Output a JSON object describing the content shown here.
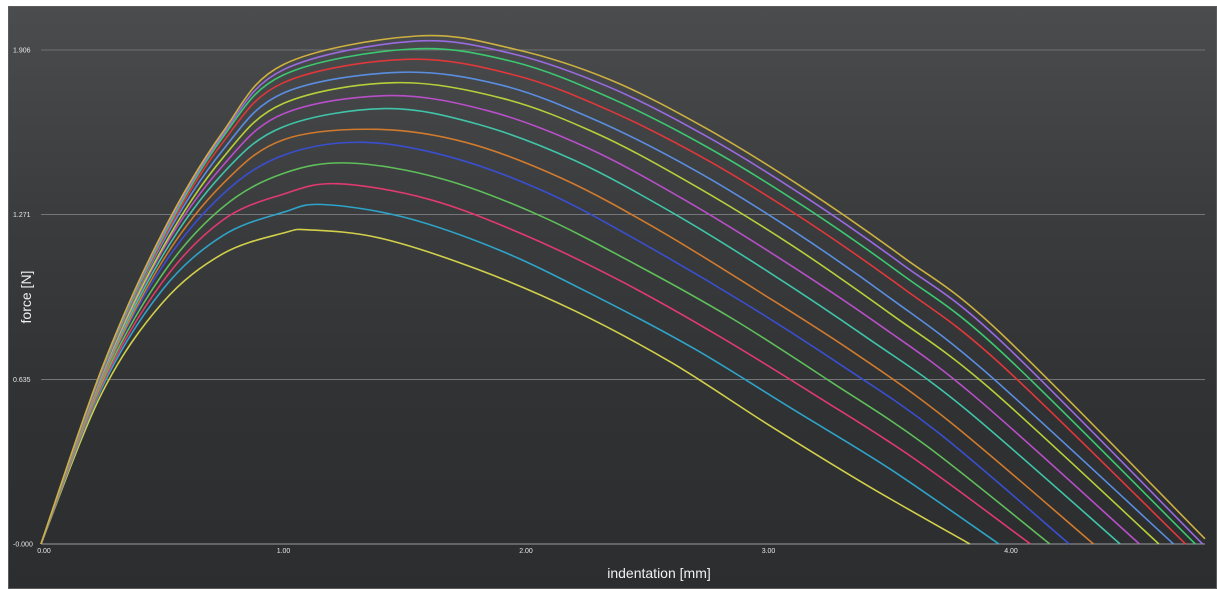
{
  "chart_data": {
    "type": "line",
    "title": "",
    "xlabel": "indentation [mm]",
    "ylabel": "force [N]",
    "xlim": [
      0.0,
      4.8
    ],
    "ylim": [
      0.0,
      1.906
    ],
    "xticks": [
      0.0,
      1.0,
      2.0,
      3.0,
      4.0
    ],
    "xtick_labels": [
      "0.00",
      "1.00",
      "2.00",
      "3.00",
      "4.00"
    ],
    "yticks": [
      0.0,
      0.635,
      1.271,
      1.906
    ],
    "ytick_labels": [
      "-0.000",
      "0.635",
      "1.271",
      "1.906"
    ],
    "grid": true,
    "legend": false,
    "series": [
      {
        "color": "#d2d04a",
        "points": [
          [
            0,
            0
          ],
          [
            0.25,
            0.58
          ],
          [
            0.5,
            0.93
          ],
          [
            0.75,
            1.12
          ],
          [
            1.0,
            1.2
          ],
          [
            1.11,
            1.212
          ],
          [
            1.4,
            1.18
          ],
          [
            1.8,
            1.06
          ],
          [
            2.2,
            0.9
          ],
          [
            2.6,
            0.7
          ],
          [
            3.0,
            0.46
          ],
          [
            3.4,
            0.23
          ],
          [
            3.83,
            0.0
          ]
        ]
      },
      {
        "color": "#2fa3c8",
        "points": [
          [
            0,
            0
          ],
          [
            0.25,
            0.6
          ],
          [
            0.5,
            0.98
          ],
          [
            0.75,
            1.19
          ],
          [
            1.0,
            1.28
          ],
          [
            1.16,
            1.31
          ],
          [
            1.5,
            1.26
          ],
          [
            1.9,
            1.13
          ],
          [
            2.3,
            0.95
          ],
          [
            2.7,
            0.75
          ],
          [
            3.1,
            0.52
          ],
          [
            3.5,
            0.29
          ],
          [
            3.95,
            0.0
          ]
        ]
      },
      {
        "color": "#e03a6e",
        "points": [
          [
            0,
            0
          ],
          [
            0.25,
            0.61
          ],
          [
            0.5,
            1.01
          ],
          [
            0.75,
            1.25
          ],
          [
            1.0,
            1.35
          ],
          [
            1.22,
            1.39
          ],
          [
            1.6,
            1.33
          ],
          [
            2.0,
            1.19
          ],
          [
            2.4,
            1.01
          ],
          [
            2.8,
            0.8
          ],
          [
            3.2,
            0.57
          ],
          [
            3.6,
            0.33
          ],
          [
            4.08,
            0.0
          ]
        ]
      },
      {
        "color": "#5fbf5a",
        "points": [
          [
            0,
            0
          ],
          [
            0.25,
            0.62
          ],
          [
            0.5,
            1.04
          ],
          [
            0.75,
            1.3
          ],
          [
            1.0,
            1.43
          ],
          [
            1.27,
            1.47
          ],
          [
            1.65,
            1.41
          ],
          [
            2.05,
            1.27
          ],
          [
            2.45,
            1.08
          ],
          [
            2.85,
            0.87
          ],
          [
            3.25,
            0.63
          ],
          [
            3.65,
            0.38
          ],
          [
            4.16,
            0.0
          ]
        ]
      },
      {
        "color": "#3a4fd0",
        "points": [
          [
            0,
            0
          ],
          [
            0.25,
            0.63
          ],
          [
            0.5,
            1.07
          ],
          [
            0.75,
            1.35
          ],
          [
            1.0,
            1.5
          ],
          [
            1.33,
            1.55
          ],
          [
            1.7,
            1.49
          ],
          [
            2.1,
            1.35
          ],
          [
            2.5,
            1.15
          ],
          [
            2.9,
            0.93
          ],
          [
            3.3,
            0.69
          ],
          [
            3.7,
            0.43
          ],
          [
            4.24,
            0.0
          ]
        ]
      },
      {
        "color": "#d07a2e",
        "points": [
          [
            0,
            0
          ],
          [
            0.25,
            0.63
          ],
          [
            0.5,
            1.09
          ],
          [
            0.75,
            1.39
          ],
          [
            1.0,
            1.56
          ],
          [
            1.38,
            1.6
          ],
          [
            1.75,
            1.55
          ],
          [
            2.15,
            1.41
          ],
          [
            2.55,
            1.21
          ],
          [
            2.95,
            0.98
          ],
          [
            3.35,
            0.74
          ],
          [
            3.75,
            0.47
          ],
          [
            4.34,
            0.0
          ]
        ]
      },
      {
        "color": "#40c4a8",
        "points": [
          [
            0,
            0
          ],
          [
            0.25,
            0.64
          ],
          [
            0.5,
            1.11
          ],
          [
            0.75,
            1.43
          ],
          [
            1.0,
            1.61
          ],
          [
            1.42,
            1.68
          ],
          [
            1.8,
            1.62
          ],
          [
            2.2,
            1.48
          ],
          [
            2.6,
            1.28
          ],
          [
            3.0,
            1.05
          ],
          [
            3.4,
            0.8
          ],
          [
            3.8,
            0.53
          ],
          [
            4.45,
            0.0
          ]
        ]
      },
      {
        "color": "#b84fc8",
        "points": [
          [
            0,
            0
          ],
          [
            0.25,
            0.645
          ],
          [
            0.5,
            1.13
          ],
          [
            0.75,
            1.46
          ],
          [
            1.0,
            1.66
          ],
          [
            1.44,
            1.73
          ],
          [
            1.85,
            1.67
          ],
          [
            2.25,
            1.53
          ],
          [
            2.65,
            1.33
          ],
          [
            3.05,
            1.1
          ],
          [
            3.45,
            0.85
          ],
          [
            3.85,
            0.57
          ],
          [
            4.53,
            0.0
          ]
        ]
      },
      {
        "color": "#b7d03a",
        "points": [
          [
            0,
            0
          ],
          [
            0.25,
            0.65
          ],
          [
            0.5,
            1.14
          ],
          [
            0.75,
            1.49
          ],
          [
            1.0,
            1.7
          ],
          [
            1.46,
            1.78
          ],
          [
            1.9,
            1.72
          ],
          [
            2.3,
            1.58
          ],
          [
            2.7,
            1.38
          ],
          [
            3.1,
            1.15
          ],
          [
            3.5,
            0.89
          ],
          [
            3.9,
            0.61
          ],
          [
            4.61,
            0.0
          ]
        ]
      },
      {
        "color": "#5a8ee0",
        "points": [
          [
            0,
            0
          ],
          [
            0.25,
            0.655
          ],
          [
            0.5,
            1.16
          ],
          [
            0.75,
            1.52
          ],
          [
            1.0,
            1.74
          ],
          [
            1.48,
            1.82
          ],
          [
            1.9,
            1.77
          ],
          [
            2.3,
            1.63
          ],
          [
            2.7,
            1.44
          ],
          [
            3.1,
            1.21
          ],
          [
            3.5,
            0.95
          ],
          [
            3.9,
            0.66
          ],
          [
            4.67,
            0.0
          ]
        ]
      },
      {
        "color": "#e0383a",
        "points": [
          [
            0,
            0
          ],
          [
            0.25,
            0.66
          ],
          [
            0.5,
            1.17
          ],
          [
            0.75,
            1.55
          ],
          [
            1.0,
            1.78
          ],
          [
            1.51,
            1.87
          ],
          [
            1.95,
            1.81
          ],
          [
            2.35,
            1.67
          ],
          [
            2.75,
            1.48
          ],
          [
            3.15,
            1.25
          ],
          [
            3.55,
            0.99
          ],
          [
            3.95,
            0.7
          ],
          [
            4.72,
            0.0
          ]
        ]
      },
      {
        "color": "#3cc870",
        "points": [
          [
            0,
            0
          ],
          [
            0.25,
            0.665
          ],
          [
            0.5,
            1.18
          ],
          [
            0.75,
            1.57
          ],
          [
            1.0,
            1.81
          ],
          [
            1.53,
            1.91
          ],
          [
            1.95,
            1.86
          ],
          [
            2.35,
            1.72
          ],
          [
            2.75,
            1.53
          ],
          [
            3.15,
            1.3
          ],
          [
            3.55,
            1.04
          ],
          [
            3.95,
            0.75
          ],
          [
            4.76,
            0.0
          ]
        ]
      },
      {
        "color": "#9a6ae0",
        "points": [
          [
            0,
            0
          ],
          [
            0.25,
            0.67
          ],
          [
            0.5,
            1.19
          ],
          [
            0.75,
            1.58
          ],
          [
            1.0,
            1.83
          ],
          [
            1.54,
            1.94
          ],
          [
            1.95,
            1.89
          ],
          [
            2.35,
            1.76
          ],
          [
            2.75,
            1.57
          ],
          [
            3.15,
            1.34
          ],
          [
            3.55,
            1.08
          ],
          [
            3.95,
            0.79
          ],
          [
            4.79,
            0.0
          ]
        ]
      },
      {
        "color": "#cdb040",
        "points": [
          [
            0,
            0
          ],
          [
            0.25,
            0.675
          ],
          [
            0.5,
            1.2
          ],
          [
            0.75,
            1.59
          ],
          [
            1.0,
            1.85
          ],
          [
            1.55,
            1.96
          ],
          [
            1.95,
            1.91
          ],
          [
            2.35,
            1.79
          ],
          [
            2.75,
            1.6
          ],
          [
            3.15,
            1.37
          ],
          [
            3.55,
            1.11
          ],
          [
            3.95,
            0.82
          ],
          [
            4.8,
            0.02
          ]
        ]
      }
    ]
  }
}
